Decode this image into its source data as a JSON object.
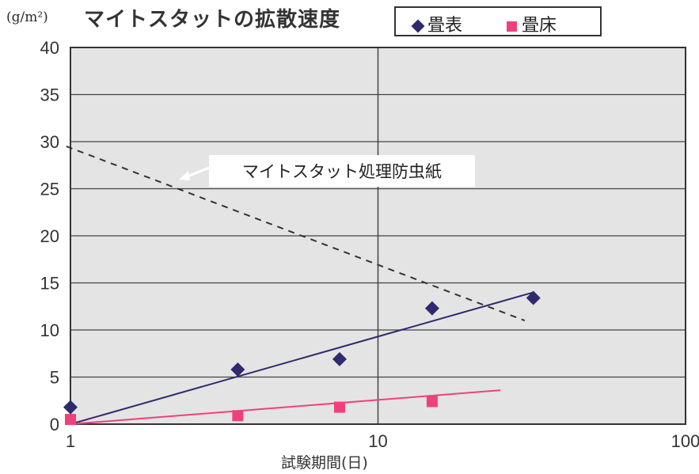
{
  "chart_data": {
    "type": "scatter",
    "title": "マイトスタットの拡散速度",
    "unit_label": "(g/m²)",
    "xlabel": "試験期間(日)",
    "ylabel": "",
    "x_scale": "log",
    "xlim": [
      1,
      100
    ],
    "ylim": [
      0,
      40
    ],
    "x_ticks": [
      1,
      10,
      100
    ],
    "y_ticks": [
      0,
      5,
      10,
      15,
      20,
      25,
      30,
      35,
      40
    ],
    "grid": true,
    "plot_background": "#e4e4e4",
    "legend_position": "top-right",
    "series": [
      {
        "name": "畳表",
        "marker": "diamond",
        "color": "#2f2a6e",
        "points": [
          {
            "x": 1,
            "y": 1.8
          },
          {
            "x": 3.5,
            "y": 5.8
          },
          {
            "x": 7.5,
            "y": 6.9
          },
          {
            "x": 15,
            "y": 12.3
          },
          {
            "x": 32,
            "y": 13.4
          }
        ],
        "trendline": [
          {
            "x": 1,
            "y": 0
          },
          {
            "x": 32,
            "y": 14
          }
        ]
      },
      {
        "name": "畳床",
        "marker": "square",
        "color": "#f0407c",
        "points": [
          {
            "x": 1,
            "y": 0.5
          },
          {
            "x": 3.5,
            "y": 0.9
          },
          {
            "x": 7.5,
            "y": 1.8
          },
          {
            "x": 15,
            "y": 2.4
          }
        ],
        "trendline": [
          {
            "x": 1,
            "y": 0
          },
          {
            "x": 25,
            "y": 3.6
          }
        ]
      }
    ],
    "reference_line": {
      "label": "マイトスタット処理防虫紙",
      "style": "dashed",
      "color": "#333333",
      "points": [
        {
          "x": 0.97,
          "y": 29.5
        },
        {
          "x": 30,
          "y": 11
        }
      ]
    }
  }
}
